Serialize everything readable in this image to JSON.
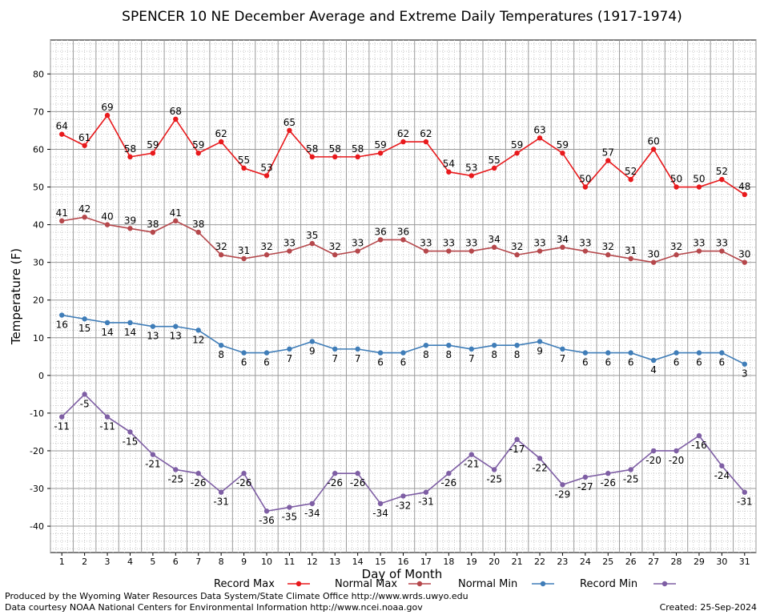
{
  "chart_data": {
    "type": "line",
    "title": "SPENCER 10 NE December Average and Extreme Daily Temperatures (1917-1974)",
    "xlabel": "Day of Month",
    "ylabel": "Temperature (F)",
    "ylim": [
      -47,
      89
    ],
    "yticks": [
      -40,
      -30,
      -20,
      -10,
      0,
      10,
      20,
      30,
      40,
      50,
      60,
      70,
      80
    ],
    "x": [
      1,
      2,
      3,
      4,
      5,
      6,
      7,
      8,
      9,
      10,
      11,
      12,
      13,
      14,
      15,
      16,
      17,
      18,
      19,
      20,
      21,
      22,
      23,
      24,
      25,
      26,
      27,
      28,
      29,
      30,
      31
    ],
    "grid": true,
    "legend_position": "bottom",
    "series": [
      {
        "name": "Record Max",
        "color": "#e8191c",
        "label_pos": "above",
        "values": [
          64,
          61,
          69,
          58,
          59,
          68,
          59,
          62,
          55,
          53,
          65,
          58,
          58,
          58,
          59,
          62,
          62,
          54,
          53,
          55,
          59,
          63,
          59,
          50,
          57,
          52,
          60,
          50,
          50,
          52,
          48
        ]
      },
      {
        "name": "Normal Max",
        "color": "#b5474b",
        "label_pos": "above",
        "values": [
          41,
          42,
          40,
          39,
          38,
          41,
          38,
          32,
          31,
          32,
          33,
          35,
          32,
          33,
          36,
          36,
          33,
          33,
          33,
          34,
          32,
          33,
          34,
          33,
          32,
          31,
          30,
          32,
          33,
          33,
          30
        ]
      },
      {
        "name": "Normal Min",
        "color": "#3f7db8",
        "label_pos": "below",
        "values": [
          16,
          15,
          14,
          14,
          13,
          13,
          12,
          8,
          6,
          6,
          7,
          9,
          7,
          7,
          6,
          6,
          8,
          8,
          7,
          8,
          8,
          9,
          7,
          6,
          6,
          6,
          4,
          6,
          6,
          6,
          3
        ]
      },
      {
        "name": "Record Min",
        "color": "#7e5ea4",
        "label_pos": "below",
        "values": [
          -11,
          -5,
          -11,
          -15,
          -21,
          -25,
          -26,
          -31,
          -26,
          -36,
          -35,
          -34,
          -26,
          -26,
          -34,
          -32,
          -31,
          -26,
          -21,
          -25,
          -17,
          -22,
          -29,
          -27,
          -26,
          -25,
          -20,
          -20,
          -16,
          -24,
          -31
        ]
      }
    ]
  },
  "footer": {
    "produced_by": "Produced by the Wyoming Water Resources Data System/State Climate Office http://www.wrds.uwyo.edu",
    "courtesy": "Data courtesy NOAA National Centers for Environmental Information http://www.ncei.noaa.gov",
    "created": "Created: 25-Sep-2024"
  }
}
